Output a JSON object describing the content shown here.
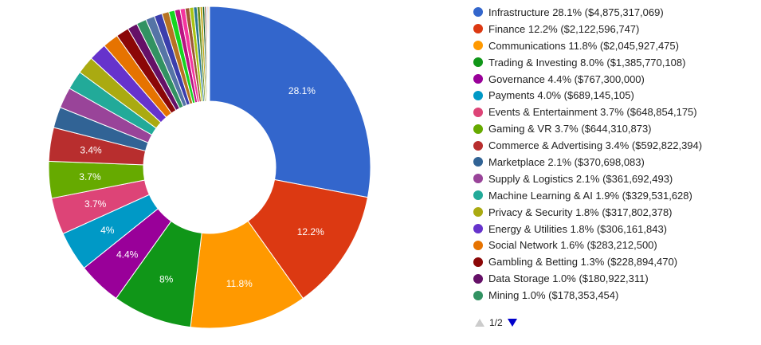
{
  "chart_data": {
    "type": "pie",
    "donut": true,
    "total_items": 35,
    "slices": [
      {
        "name": "Infrastructure",
        "percent": 28.1,
        "value": 4875317069,
        "color": "#3366cc",
        "label": "28.1%"
      },
      {
        "name": "Finance",
        "percent": 12.2,
        "value": 2122596747,
        "color": "#dc3912",
        "label": "12.2%"
      },
      {
        "name": "Communications",
        "percent": 11.8,
        "value": 2045927475,
        "color": "#ff9900",
        "label": "11.8%"
      },
      {
        "name": "Trading & Investing",
        "percent": 8.0,
        "value": 1385770108,
        "color": "#109618",
        "label": "8%"
      },
      {
        "name": "Governance",
        "percent": 4.4,
        "value": 767300000,
        "color": "#990099",
        "label": "4.4%"
      },
      {
        "name": "Payments",
        "percent": 4.0,
        "value": 689145105,
        "color": "#0099c6",
        "label": "4%"
      },
      {
        "name": "Events & Entertainment",
        "percent": 3.7,
        "value": 648854175,
        "color": "#dd4477",
        "label": "3.7%"
      },
      {
        "name": "Gaming & VR",
        "percent": 3.7,
        "value": 644310873,
        "color": "#66aa00",
        "label": "3.7%"
      },
      {
        "name": "Commerce & Advertising",
        "percent": 3.4,
        "value": 592822394,
        "color": "#b82e2e",
        "label": "3.4%"
      },
      {
        "name": "Marketplace",
        "percent": 2.1,
        "value": 370698083,
        "color": "#316395",
        "label": ""
      },
      {
        "name": "Supply & Logistics",
        "percent": 2.1,
        "value": 361692493,
        "color": "#994499",
        "label": ""
      },
      {
        "name": "Machine Learning & AI",
        "percent": 1.9,
        "value": 329531628,
        "color": "#22aa99",
        "label": ""
      },
      {
        "name": "Privacy & Security",
        "percent": 1.8,
        "value": 317802378,
        "color": "#aaaa11",
        "label": ""
      },
      {
        "name": "Energy & Utilities",
        "percent": 1.8,
        "value": 306161843,
        "color": "#6633cc",
        "label": ""
      },
      {
        "name": "Social Network",
        "percent": 1.6,
        "value": 283212500,
        "color": "#e67300",
        "label": ""
      },
      {
        "name": "Gambling & Betting",
        "percent": 1.3,
        "value": 228894470,
        "color": "#8b0707",
        "label": ""
      },
      {
        "name": "Data Storage",
        "percent": 1.0,
        "value": 180922311,
        "color": "#651067",
        "label": ""
      },
      {
        "name": "Mining",
        "percent": 1.0,
        "value": 178353454,
        "color": "#329262",
        "label": ""
      }
    ],
    "small_slices": [
      {
        "percent": 0.9,
        "color": "#5574a6"
      },
      {
        "percent": 0.8,
        "color": "#3b3eac"
      },
      {
        "percent": 0.7,
        "color": "#b77322"
      },
      {
        "percent": 0.6,
        "color": "#16d620"
      },
      {
        "percent": 0.55,
        "color": "#b91383"
      },
      {
        "percent": 0.5,
        "color": "#f4359e"
      },
      {
        "percent": 0.45,
        "color": "#9c5935"
      },
      {
        "percent": 0.4,
        "color": "#a9c413"
      },
      {
        "percent": 0.35,
        "color": "#2a778d"
      },
      {
        "percent": 0.3,
        "color": "#668d1c"
      },
      {
        "percent": 0.25,
        "color": "#bea413"
      },
      {
        "percent": 0.2,
        "color": "#0c5922"
      },
      {
        "percent": 0.15,
        "color": "#743411"
      },
      {
        "percent": 0.1,
        "color": "#3366cc"
      },
      {
        "percent": 0.1,
        "color": "#dc3912"
      },
      {
        "percent": 0.1,
        "color": "#ff9900"
      },
      {
        "percent": 0.05,
        "color": "#109618"
      }
    ],
    "legend_position": "right"
  },
  "legend": {
    "entries": [
      "Infrastructure 28.1% ($4,875,317,069)",
      "Finance 12.2% ($2,122,596,747)",
      "Communications 11.8% ($2,045,927,475)",
      "Trading & Investing 8.0% ($1,385,770,108)",
      "Governance 4.4% ($767,300,000)",
      "Payments 4.0% ($689,145,105)",
      "Events & Entertainment 3.7% ($648,854,175)",
      "Gaming & VR 3.7% ($644,310,873)",
      "Commerce & Advertising 3.4% ($592,822,394)",
      "Marketplace 2.1% ($370,698,083)",
      "Supply & Logistics 2.1% ($361,692,493)",
      "Machine Learning & AI 1.9% ($329,531,628)",
      "Privacy & Security 1.8% ($317,802,378)",
      "Energy & Utilities 1.8% ($306,161,843)",
      "Social Network 1.6% ($283,212,500)",
      "Gambling & Betting 1.3% ($228,894,470)",
      "Data Storage 1.0% ($180,922,311)",
      "Mining 1.0% ($178,353,454)"
    ]
  },
  "pager": {
    "text": "1/2",
    "prev_color": "#cccccc",
    "next_color": "#0000cc"
  }
}
